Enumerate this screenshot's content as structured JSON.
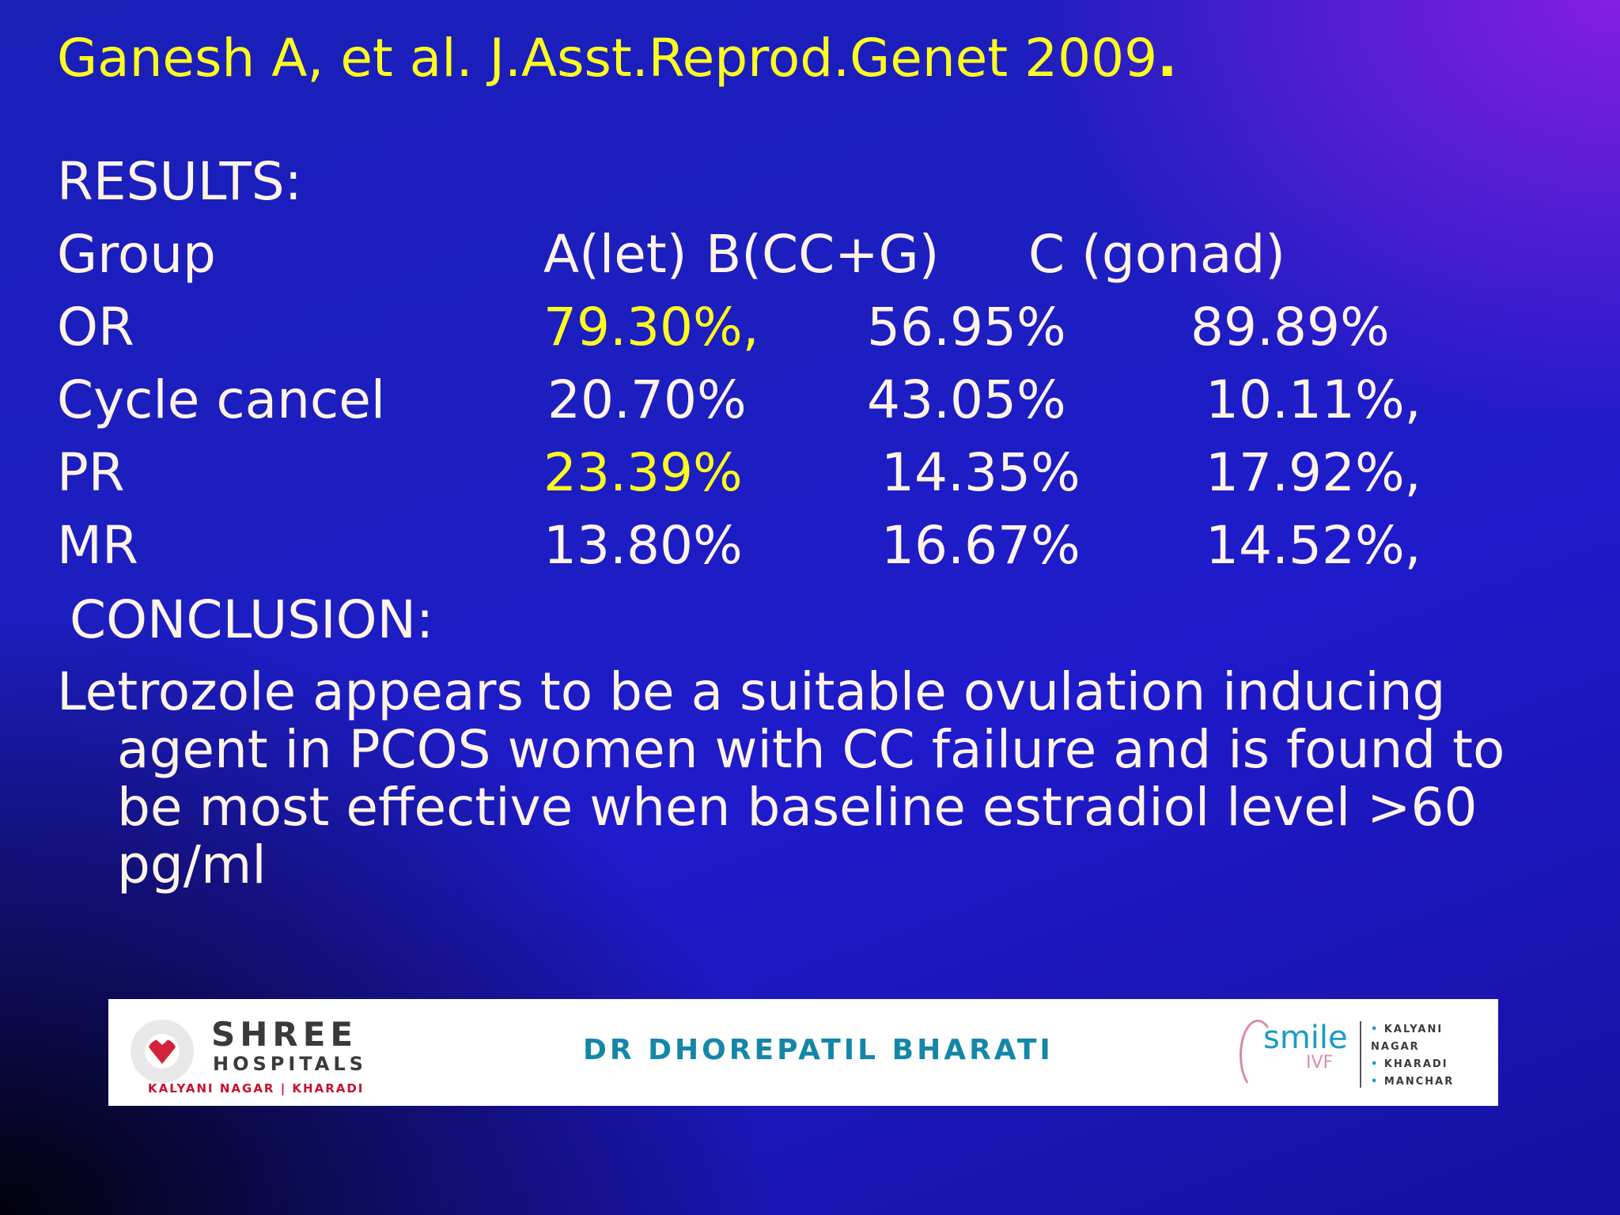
{
  "slide": {
    "citation": "Ganesh A, et al. J.Asst.Reprod.Genet 2009",
    "citation_punct": ".",
    "results_heading": "RESULTS:",
    "table": {
      "header": {
        "label": "Group",
        "a": "A(let)",
        "b": "B(CC+G)",
        "c": "C (gonad)"
      },
      "rows": [
        {
          "label": "OR",
          "a": "79.30%,",
          "b": "56.95%",
          "c": "89.89%",
          "a_highlight": true
        },
        {
          "label": "Cycle cancel",
          "a": "20.70%",
          "b": "43.05%",
          "c": "10.11%,",
          "a_highlight": false
        },
        {
          "label": "PR",
          "a": "23.39%",
          "b": "14.35%",
          "c": "17.92%,",
          "a_highlight": true
        },
        {
          "label": "MR",
          "a": "13.80%",
          "b": "16.67%",
          "c": "14.52%,",
          "a_highlight": false
        }
      ]
    },
    "conclusion_heading": "CONCLUSION:",
    "conclusion_text": "Letrozole appears to be a suitable ovulation inducing agent in PCOS women with CC failure and is found to be most effective when baseline estradiol level >60 pg/ml"
  },
  "banner": {
    "shree": {
      "name": "SHREE",
      "sub": "HOSPITALS",
      "locations": "KALYANI NAGAR  |  KHARADI"
    },
    "doctor": "DR DHOREPATIL BHARATI",
    "smile": {
      "word": "smile",
      "ivf": "IVF",
      "locations": [
        "KALYANI NAGAR",
        "KHARADI",
        "MANCHAR"
      ]
    }
  },
  "colors": {
    "highlight": "#ffff1e",
    "text": "#fdf3e6",
    "doctor": "#1486a8"
  }
}
